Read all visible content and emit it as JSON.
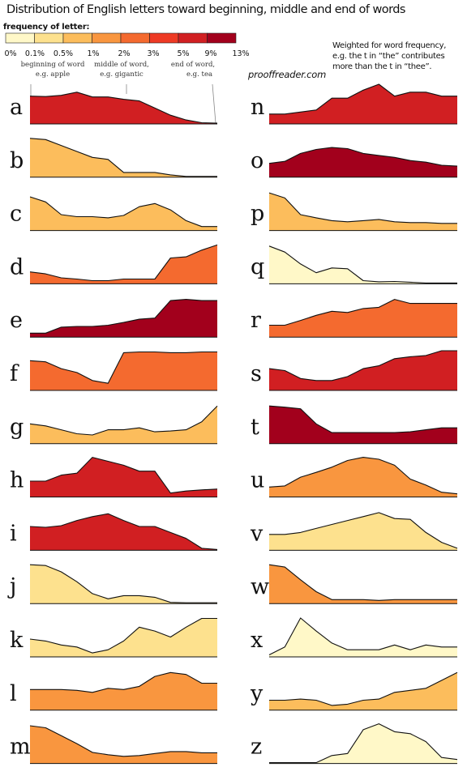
{
  "header": {
    "title": "Distribution of English letters toward beginning, middle and end of words",
    "legend_title": "frequency of letter:",
    "note": "Weighted for word frequency,\ne.g. the t in “the” contributes\nmore than the t in “thee”.",
    "website": "prooffreader.com"
  },
  "legend": {
    "ticks": [
      "0%",
      "0.1%",
      "0.5%",
      "1%",
      "2%",
      "3%",
      "5%",
      "9%",
      "13%"
    ],
    "colors": [
      "#fff8c8",
      "#fde18e",
      "#fcbd5c",
      "#f9963f",
      "#f46a2f",
      "#ee3a24",
      "#d11f22",
      "#a2001c"
    ]
  },
  "position_labels": [
    {
      "line1": "beginning of word",
      "line2": "e.g. apple"
    },
    {
      "line1": "middle of word,",
      "line2": "e.g. gigantic"
    },
    {
      "line1": "end of word,",
      "line2": "e.g. tea"
    }
  ],
  "chart_data": {
    "type": "area",
    "xlabel": "",
    "ylabel": "",
    "series": [
      {
        "name": "a",
        "color": "#d11f22",
        "values": [
          0.7,
          0.69,
          0.72,
          0.8,
          0.68,
          0.68,
          0.62,
          0.58,
          0.4,
          0.22,
          0.1,
          0.03,
          0.02
        ]
      },
      {
        "name": "b",
        "color": "#fcbd5c",
        "values": [
          0.98,
          0.95,
          0.8,
          0.65,
          0.5,
          0.45,
          0.12,
          0.12,
          0.12,
          0.06,
          0.02,
          0.02,
          0.02
        ]
      },
      {
        "name": "c",
        "color": "#fcbd5c",
        "values": [
          0.85,
          0.72,
          0.4,
          0.35,
          0.35,
          0.32,
          0.38,
          0.6,
          0.68,
          0.52,
          0.25,
          0.1,
          0.1
        ]
      },
      {
        "name": "d",
        "color": "#f46a2f",
        "values": [
          0.3,
          0.25,
          0.15,
          0.12,
          0.08,
          0.08,
          0.12,
          0.12,
          0.12,
          0.65,
          0.68,
          0.85,
          0.98
        ]
      },
      {
        "name": "e",
        "color": "#a2001c",
        "values": [
          0.1,
          0.1,
          0.25,
          0.27,
          0.27,
          0.3,
          0.37,
          0.45,
          0.48,
          0.92,
          0.95,
          0.92,
          0.92
        ]
      },
      {
        "name": "f",
        "color": "#f46a2f",
        "values": [
          0.75,
          0.72,
          0.55,
          0.45,
          0.25,
          0.18,
          0.95,
          0.97,
          0.97,
          0.95,
          0.95,
          0.97,
          0.97
        ]
      },
      {
        "name": "g",
        "color": "#fcbd5c",
        "values": [
          0.5,
          0.45,
          0.35,
          0.25,
          0.22,
          0.35,
          0.35,
          0.4,
          0.3,
          0.32,
          0.35,
          0.55,
          0.95
        ]
      },
      {
        "name": "h",
        "color": "#d11f22",
        "values": [
          0.4,
          0.4,
          0.55,
          0.6,
          1.0,
          0.9,
          0.8,
          0.65,
          0.65,
          0.1,
          0.15,
          0.18,
          0.2
        ]
      },
      {
        "name": "i",
        "color": "#d11f22",
        "values": [
          0.6,
          0.58,
          0.62,
          0.75,
          0.85,
          0.92,
          0.75,
          0.6,
          0.6,
          0.45,
          0.3,
          0.05,
          0.02
        ]
      },
      {
        "name": "j",
        "color": "#fde18e",
        "values": [
          0.98,
          0.96,
          0.8,
          0.55,
          0.25,
          0.12,
          0.2,
          0.2,
          0.16,
          0.03,
          0.02,
          0.02,
          0.02
        ]
      },
      {
        "name": "k",
        "color": "#fde18e",
        "values": [
          0.45,
          0.4,
          0.3,
          0.25,
          0.1,
          0.18,
          0.4,
          0.75,
          0.65,
          0.5,
          0.75,
          0.97,
          0.97
        ]
      },
      {
        "name": "l",
        "color": "#f9963f",
        "values": [
          0.52,
          0.52,
          0.52,
          0.5,
          0.45,
          0.55,
          0.52,
          0.6,
          0.85,
          0.95,
          0.9,
          0.68,
          0.68
        ]
      },
      {
        "name": "m",
        "color": "#f9963f",
        "values": [
          0.95,
          0.9,
          0.7,
          0.5,
          0.28,
          0.22,
          0.18,
          0.2,
          0.25,
          0.3,
          0.3,
          0.27,
          0.27
        ]
      },
      {
        "name": "n",
        "color": "#d11f22",
        "values": [
          0.25,
          0.25,
          0.3,
          0.35,
          0.65,
          0.65,
          0.85,
          1.0,
          0.7,
          0.8,
          0.8,
          0.7,
          0.7
        ]
      },
      {
        "name": "o",
        "color": "#a2001c",
        "values": [
          0.35,
          0.4,
          0.6,
          0.7,
          0.75,
          0.72,
          0.6,
          0.55,
          0.5,
          0.42,
          0.38,
          0.3,
          0.28
        ]
      },
      {
        "name": "p",
        "color": "#fcbd5c",
        "values": [
          0.95,
          0.82,
          0.4,
          0.32,
          0.25,
          0.22,
          0.25,
          0.28,
          0.22,
          0.2,
          0.2,
          0.18,
          0.18
        ]
      },
      {
        "name": "q",
        "color": "#fff8c8",
        "values": [
          0.95,
          0.8,
          0.5,
          0.28,
          0.4,
          0.38,
          0.08,
          0.05,
          0.06,
          0.04,
          0.02,
          0.02,
          0.02
        ]
      },
      {
        "name": "r",
        "color": "#f46a2f",
        "values": [
          0.3,
          0.3,
          0.42,
          0.55,
          0.65,
          0.62,
          0.72,
          0.75,
          0.95,
          0.85,
          0.85,
          0.85,
          0.85
        ]
      },
      {
        "name": "s",
        "color": "#d11f22",
        "values": [
          0.55,
          0.5,
          0.3,
          0.25,
          0.25,
          0.35,
          0.55,
          0.62,
          0.8,
          0.85,
          0.88,
          1.0,
          1.0
        ]
      },
      {
        "name": "t",
        "color": "#a2001c",
        "values": [
          0.95,
          0.92,
          0.88,
          0.5,
          0.28,
          0.28,
          0.28,
          0.28,
          0.28,
          0.3,
          0.35,
          0.4,
          0.4
        ]
      },
      {
        "name": "u",
        "color": "#f9963f",
        "values": [
          0.25,
          0.28,
          0.5,
          0.62,
          0.75,
          0.92,
          1.0,
          0.95,
          0.8,
          0.45,
          0.3,
          0.12,
          0.08
        ]
      },
      {
        "name": "v",
        "color": "#fde18e",
        "values": [
          0.4,
          0.4,
          0.45,
          0.55,
          0.65,
          0.75,
          0.85,
          0.95,
          0.8,
          0.78,
          0.45,
          0.2,
          0.05
        ]
      },
      {
        "name": "w",
        "color": "#f9963f",
        "values": [
          0.98,
          0.92,
          0.6,
          0.3,
          0.1,
          0.1,
          0.1,
          0.08,
          0.1,
          0.1,
          0.1,
          0.1,
          0.1
        ]
      },
      {
        "name": "x",
        "color": "#fff8c8",
        "values": [
          0.05,
          0.25,
          0.98,
          0.65,
          0.35,
          0.18,
          0.18,
          0.18,
          0.3,
          0.18,
          0.3,
          0.25,
          0.25
        ]
      },
      {
        "name": "y",
        "color": "#fcbd5c",
        "values": [
          0.25,
          0.25,
          0.28,
          0.25,
          0.12,
          0.15,
          0.25,
          0.28,
          0.45,
          0.5,
          0.55,
          0.75,
          0.95
        ]
      },
      {
        "name": "z",
        "color": "#fff8c8",
        "values": [
          0.02,
          0.02,
          0.02,
          0.02,
          0.2,
          0.25,
          0.85,
          1.0,
          0.8,
          0.75,
          0.55,
          0.15,
          0.1
        ]
      }
    ]
  }
}
